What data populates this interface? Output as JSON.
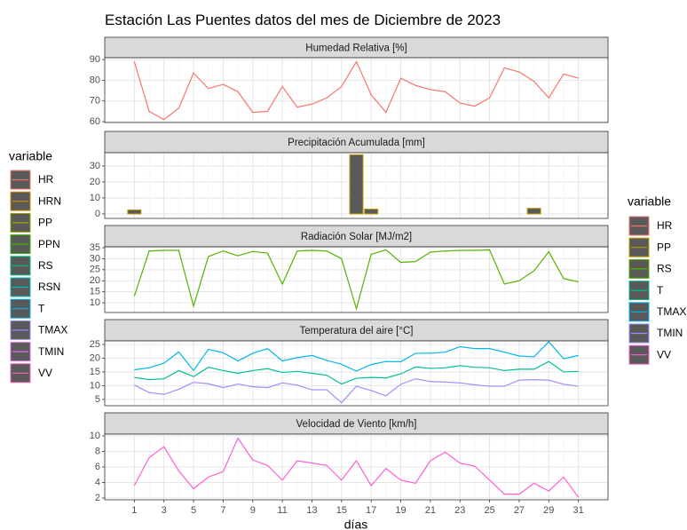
{
  "title": "Estación Las Puentes datos del mes de Diciembre de 2023",
  "x_axis": {
    "label": "días",
    "x": [
      1,
      2,
      3,
      4,
      5,
      6,
      7,
      8,
      9,
      10,
      11,
      12,
      13,
      14,
      15,
      16,
      17,
      18,
      19,
      20,
      21,
      22,
      23,
      24,
      25,
      26,
      27,
      28,
      29,
      30,
      31
    ],
    "xlim": [
      -1,
      33
    ],
    "xticks": [
      1,
      3,
      5,
      7,
      9,
      11,
      13,
      15,
      17,
      19,
      21,
      23,
      25,
      27,
      29,
      31
    ]
  },
  "chart_data": [
    {
      "type": "line",
      "title": "Humedad Relativa [%]",
      "ylim": [
        59.6,
        90.9
      ],
      "yticks": [
        60,
        70,
        80,
        90
      ],
      "grid": true,
      "series": [
        {
          "name": "HR",
          "color": "#F8766D",
          "values": [
            89,
            65,
            61,
            66.5,
            83.5,
            76,
            78,
            74.5,
            64.5,
            65,
            77,
            67,
            68.5,
            71.5,
            77,
            89,
            73,
            64.5,
            81,
            77.5,
            75.5,
            74.5,
            69,
            67.5,
            71.5,
            86,
            84,
            79.5,
            71.5,
            83,
            81
          ]
        }
      ]
    },
    {
      "type": "bar",
      "title": "Precipitación Acumulada [mm]",
      "ylim": [
        -2.8,
        38.3
      ],
      "yticks": [
        0,
        10,
        20,
        30
      ],
      "grid": true,
      "series": [
        {
          "name": "PP",
          "color": "#C49A00",
          "values": [
            2.5,
            0,
            0,
            0,
            0,
            0,
            0,
            0,
            0,
            0,
            0,
            0,
            0,
            0,
            0,
            37,
            3,
            0,
            0,
            0,
            0,
            0,
            0,
            0,
            0,
            0,
            0,
            3.5,
            0,
            0,
            0
          ]
        }
      ]
    },
    {
      "type": "line",
      "title": "Radiación Solar [MJ/m2]",
      "ylim": [
        5.6,
        35.4
      ],
      "yticks": [
        10,
        15,
        20,
        25,
        30,
        35
      ],
      "grid": true,
      "series": [
        {
          "name": "RS",
          "color": "#53B400",
          "values": [
            13,
            33.5,
            33.8,
            33.8,
            8.5,
            31,
            33.5,
            31.3,
            33.3,
            32.5,
            18.5,
            33.5,
            33.8,
            33.5,
            30,
            7.3,
            32,
            34,
            28.3,
            28.7,
            33,
            33.5,
            33.8,
            33.8,
            34,
            18.5,
            20,
            24.5,
            33.2,
            21,
            19.5
          ]
        }
      ]
    },
    {
      "type": "line",
      "title": "Temperatura del aire [°C]",
      "ylim": [
        2.7,
        26.3
      ],
      "yticks": [
        5,
        10,
        15,
        20,
        25
      ],
      "grid": true,
      "series": [
        {
          "name": "T",
          "color": "#00C094",
          "values": [
            13,
            12.2,
            12.5,
            15.5,
            13.3,
            16.7,
            15.5,
            14.5,
            15.5,
            16.2,
            14.8,
            15.2,
            14.5,
            13.8,
            10.6,
            12.7,
            13,
            12.8,
            14.3,
            16.8,
            16.3,
            16.5,
            17.3,
            16.7,
            16.5,
            15.5,
            16,
            16,
            18.8,
            15,
            15.2
          ]
        },
        {
          "name": "TMAX",
          "color": "#00B6EB",
          "values": [
            15.8,
            16.5,
            18.2,
            22.3,
            15.5,
            23.2,
            22,
            19,
            21.8,
            23.5,
            19,
            20.2,
            21,
            19.2,
            17.8,
            15.3,
            17.7,
            18.8,
            18.7,
            21.8,
            21.8,
            22.2,
            24.2,
            23.5,
            23.5,
            22.2,
            20.8,
            20.5,
            26,
            19.8,
            21
          ]
        },
        {
          "name": "TMIN",
          "color": "#A58AFF",
          "values": [
            10.2,
            7.5,
            6.8,
            8.7,
            11.2,
            10.7,
            9.3,
            10.6,
            9.6,
            9.3,
            11,
            10.2,
            8.5,
            8.5,
            3.8,
            9.8,
            8.2,
            6.3,
            10.5,
            12.5,
            11.5,
            11.3,
            11,
            10.3,
            9.8,
            9.8,
            12,
            12.2,
            12,
            10.5,
            9.8
          ]
        }
      ]
    },
    {
      "type": "line",
      "title": "Velocidad de Viento [km/h]",
      "ylim": [
        1.77,
        10.23
      ],
      "yticks": [
        2,
        4,
        6,
        8,
        10
      ],
      "grid": true,
      "series": [
        {
          "name": "VV",
          "color": "#FB61D7",
          "values": [
            3.6,
            7.2,
            8.6,
            5.5,
            3.2,
            4.7,
            5.4,
            9.7,
            6.9,
            6.2,
            4.3,
            6.8,
            6.5,
            6.2,
            4.3,
            6.8,
            3.6,
            5.8,
            4.3,
            3.9,
            6.8,
            7.9,
            6.5,
            6.1,
            4.3,
            2.5,
            2.5,
            3.9,
            2.9,
            4.7,
            2.1
          ]
        }
      ]
    }
  ],
  "legends": [
    {
      "title": "variable",
      "entries": [
        {
          "name": "HR",
          "color": "#F8766D"
        },
        {
          "name": "HRN",
          "color": "#D89000"
        },
        {
          "name": "PP",
          "color": "#A3A500"
        },
        {
          "name": "PPN",
          "color": "#39B600"
        },
        {
          "name": "RS",
          "color": "#00BF7D"
        },
        {
          "name": "RSN",
          "color": "#00BFC4"
        },
        {
          "name": "T",
          "color": "#00B0F6"
        },
        {
          "name": "TMAX",
          "color": "#9590FF"
        },
        {
          "name": "TMIN",
          "color": "#E76BF3"
        },
        {
          "name": "VV",
          "color": "#FF62BC"
        }
      ]
    },
    {
      "title": "variable",
      "entries": [
        {
          "name": "HR",
          "color": "#F8766D"
        },
        {
          "name": "PP",
          "color": "#C49A00"
        },
        {
          "name": "RS",
          "color": "#53B400"
        },
        {
          "name": "T",
          "color": "#00C094"
        },
        {
          "name": "TMAX",
          "color": "#00B6EB"
        },
        {
          "name": "TMIN",
          "color": "#A58AFF"
        },
        {
          "name": "VV",
          "color": "#FB61D7"
        }
      ]
    }
  ]
}
